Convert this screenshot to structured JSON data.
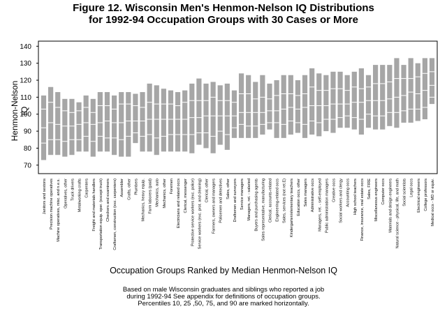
{
  "header": {
    "title_line1": "Figure 12. Wisconsin Men's  Henmon-Nelson IQ Distributions",
    "title_line2": "for 1992-94 Occupation Groups with 30 Cases or More"
  },
  "footer": {
    "note_line1": "Based on male  Wisconsin graduates and siblings who reported a job",
    "note_line2": "during 1992-94  See appendix for definitions of occupation groups.",
    "note_line3": "Percentiles 10, 25 ,50, 75, and 90 are marked horizontally."
  },
  "chart_data": {
    "type": "boxplot",
    "title": "Figure 12. Wisconsin Men's  Henmon-Nelson IQ Distributions for 1992-94 Occupation Groups with 30 Cases or More",
    "xlabel": "Occupation Groups Ranked by Median Henmon-Nelson IQ",
    "ylabel": "Henmon-Nelson IQ",
    "ylim": [
      65,
      143
    ],
    "yticks": [
      70,
      80,
      90,
      100,
      110,
      120,
      130,
      140
    ],
    "grid": false,
    "bar_color": "#a6a6a6",
    "percentile_marks": [
      "p10",
      "p25",
      "p50",
      "p75",
      "p90"
    ],
    "categories": [
      "Janitors and sextons",
      "Precision machine operatives",
      "Machine operatives, misc. and n.e.s.",
      "Operatives, other",
      "Truck drivers",
      "Metalworking crafts",
      "Carpenters",
      "Freight and materials handlers",
      "Transportation equip. oper. (except truck)",
      "Checkers and examiners",
      "Craftsmen, construction (exc. carpenters)",
      "Assembler",
      "Crafts, other",
      "Plumbers",
      "Mechanics, heavy equip.",
      "Farm laborers (paid)",
      "Mechanics, auto",
      "Mechanics, other",
      "Foremen",
      "Electricians and related occs",
      "Clerical, messenger",
      "Protective service workers (exc. police)",
      "Service workers (exc. prot. and cleaning)",
      "Clerical, other",
      "Farmers, owners and managers",
      "Policemen and detectives",
      "Sales, other",
      "Draftsmen and surveyors",
      "Service managers",
      "Managers, ret. - salaried",
      "Buyers and purchasing agents",
      "Sales representative, manufacturing",
      "Clerical, accounts-related",
      "Engineering-related occs",
      "Sales, services (not ret.E)",
      "Kindergarten/elementary teachers",
      "Education occs, other",
      "Sales managers",
      "Administrative occs",
      "Managers, ret. - self-employed",
      "Public administration managers",
      "Creative occs",
      "Social workers and clergy",
      "Accounting occs",
      "High school teachers",
      "Finance, insurance, real estate occs",
      "Sales, FIRE",
      "Miscellaneous engineers",
      "Computer occs",
      "Materials and design engineers",
      "Natural science - physical, life, and math",
      "Social scientists",
      "Legal occs",
      "Electrical engineers",
      "College professors",
      "Medical occs - MD or equiv."
    ],
    "series": [
      {
        "p10": 73,
        "p25": 83,
        "p50": 92,
        "p75": 103,
        "p90": 111
      },
      {
        "p10": 76,
        "p25": 85,
        "p50": 95,
        "p75": 107,
        "p90": 116
      },
      {
        "p10": 76,
        "p25": 85,
        "p50": 94,
        "p75": 104,
        "p90": 113
      },
      {
        "p10": 75,
        "p25": 84,
        "p50": 93,
        "p75": 102,
        "p90": 109
      },
      {
        "p10": 76,
        "p25": 85,
        "p50": 93,
        "p75": 101,
        "p90": 109
      },
      {
        "p10": 78,
        "p25": 85,
        "p50": 94,
        "p75": 102,
        "p90": 107
      },
      {
        "p10": 78,
        "p25": 87,
        "p50": 95,
        "p75": 104,
        "p90": 111
      },
      {
        "p10": 75,
        "p25": 84,
        "p50": 94,
        "p75": 101,
        "p90": 109
      },
      {
        "p10": 78,
        "p25": 87,
        "p50": 95,
        "p75": 105,
        "p90": 113
      },
      {
        "p10": 78,
        "p25": 86,
        "p50": 96,
        "p75": 105,
        "p90": 113
      },
      {
        "p10": 76,
        "p25": 86,
        "p50": 95,
        "p75": 103,
        "p90": 111
      },
      {
        "p10": 75,
        "p25": 85,
        "p50": 95,
        "p75": 106,
        "p90": 113
      },
      {
        "p10": 75,
        "p25": 87,
        "p50": 96,
        "p75": 106,
        "p90": 113
      },
      {
        "p10": 83,
        "p25": 89,
        "p50": 96,
        "p75": 105,
        "p90": 112
      },
      {
        "p10": 78,
        "p25": 87,
        "p50": 96,
        "p75": 104,
        "p90": 113
      },
      {
        "p10": 78,
        "p25": 88,
        "p50": 97,
        "p75": 107,
        "p90": 118
      },
      {
        "p10": 76,
        "p25": 86,
        "p50": 97,
        "p75": 106,
        "p90": 117
      },
      {
        "p10": 78,
        "p25": 87,
        "p50": 97,
        "p75": 106,
        "p90": 115
      },
      {
        "p10": 78,
        "p25": 88,
        "p50": 97,
        "p75": 106,
        "p90": 114
      },
      {
        "p10": 78,
        "p25": 88,
        "p50": 97,
        "p75": 105,
        "p90": 113
      },
      {
        "p10": 78,
        "p25": 88,
        "p50": 97,
        "p75": 107,
        "p90": 114
      },
      {
        "p10": 77,
        "p25": 88,
        "p50": 98,
        "p75": 108,
        "p90": 118
      },
      {
        "p10": 82,
        "p25": 89,
        "p50": 98,
        "p75": 108,
        "p90": 121
      },
      {
        "p10": 80,
        "p25": 89,
        "p50": 99,
        "p75": 108,
        "p90": 118
      },
      {
        "p10": 77,
        "p25": 87,
        "p50": 99,
        "p75": 110,
        "p90": 119
      },
      {
        "p10": 82,
        "p25": 90,
        "p50": 99,
        "p75": 108,
        "p90": 117
      },
      {
        "p10": 79,
        "p25": 88,
        "p50": 99,
        "p75": 108,
        "p90": 118
      },
      {
        "p10": 86,
        "p25": 92,
        "p50": 99,
        "p75": 107,
        "p90": 114
      },
      {
        "p10": 86,
        "p25": 94,
        "p50": 101,
        "p75": 112,
        "p90": 124
      },
      {
        "p10": 86,
        "p25": 93,
        "p50": 101,
        "p75": 112,
        "p90": 123
      },
      {
        "p10": 86,
        "p25": 93,
        "p50": 101,
        "p75": 109,
        "p90": 119
      },
      {
        "p10": 88,
        "p25": 94,
        "p50": 101,
        "p75": 110,
        "p90": 123
      },
      {
        "p10": 91,
        "p25": 95,
        "p50": 102,
        "p75": 109,
        "p90": 118
      },
      {
        "p10": 86,
        "p25": 95,
        "p50": 102,
        "p75": 111,
        "p90": 120
      },
      {
        "p10": 86,
        "p25": 94,
        "p50": 103,
        "p75": 112,
        "p90": 123
      },
      {
        "p10": 88,
        "p25": 96,
        "p50": 104,
        "p75": 112,
        "p90": 123
      },
      {
        "p10": 89,
        "p25": 95,
        "p50": 103,
        "p75": 111,
        "p90": 120
      },
      {
        "p10": 86,
        "p25": 94,
        "p50": 104,
        "p75": 112,
        "p90": 123
      },
      {
        "p10": 88,
        "p25": 96,
        "p50": 105,
        "p75": 116,
        "p90": 127
      },
      {
        "p10": 87,
        "p25": 95,
        "p50": 105,
        "p75": 114,
        "p90": 124
      },
      {
        "p10": 90,
        "p25": 97,
        "p50": 105,
        "p75": 114,
        "p90": 123
      },
      {
        "p10": 89,
        "p25": 97,
        "p50": 106,
        "p75": 115,
        "p90": 125
      },
      {
        "p10": 92,
        "p25": 98,
        "p50": 106,
        "p75": 115,
        "p90": 125
      },
      {
        "p10": 92,
        "p25": 99,
        "p50": 106,
        "p75": 114,
        "p90": 123
      },
      {
        "p10": 91,
        "p25": 98,
        "p50": 107,
        "p75": 116,
        "p90": 125
      },
      {
        "p10": 88,
        "p25": 97,
        "p50": 107,
        "p75": 115,
        "p90": 127
      },
      {
        "p10": 92,
        "p25": 100,
        "p50": 108,
        "p75": 116,
        "p90": 123
      },
      {
        "p10": 91,
        "p25": 99,
        "p50": 108,
        "p75": 118,
        "p90": 129
      },
      {
        "p10": 91,
        "p25": 99,
        "p50": 108,
        "p75": 118,
        "p90": 129
      },
      {
        "p10": 93,
        "p25": 101,
        "p50": 109,
        "p75": 119,
        "p90": 129
      },
      {
        "p10": 92,
        "p25": 101,
        "p50": 110,
        "p75": 121,
        "p90": 133
      },
      {
        "p10": 95,
        "p25": 102,
        "p50": 111,
        "p75": 121,
        "p90": 129
      },
      {
        "p10": 95,
        "p25": 103,
        "p50": 113,
        "p75": 121,
        "p90": 133
      },
      {
        "p10": 96,
        "p25": 103,
        "p50": 112,
        "p75": 122,
        "p90": 130
      },
      {
        "p10": 97,
        "p25": 104,
        "p50": 114,
        "p75": 124,
        "p90": 133
      },
      {
        "p10": 106,
        "p25": 110,
        "p50": 117,
        "p75": 125,
        "p90": 133
      }
    ]
  }
}
